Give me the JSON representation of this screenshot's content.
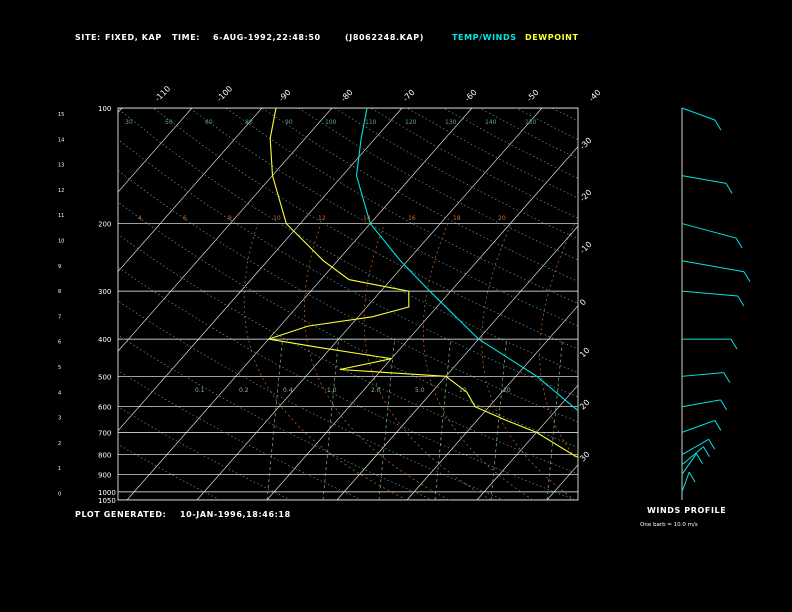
{
  "header": {
    "site_label": "SITE:",
    "site_value": "FIXED, KAP",
    "time_label": "TIME:",
    "time_value": "6-AUG-1992,22:48:50",
    "file": "(J8062248.KAP)",
    "legend_temp": "TEMP/WINDS",
    "legend_dew": "DEWPOINT"
  },
  "footer": {
    "generated_label": "PLOT GENERATED:",
    "generated_value": "10-JAN-1996,18:46:18",
    "winds_title": "WINDS PROFILE",
    "winds_note": "One barb = 10.0 m/s"
  },
  "colors": {
    "temp": "#00e5e5",
    "dew": "#ffff33",
    "grid": "#ffffff",
    "dry_adiabat": "#5f9ea0",
    "moist_adiabat": "#d2691e",
    "mixing_ratio": "#8fbc8f"
  },
  "chart_data": {
    "type": "line",
    "title": "",
    "xlabel": "",
    "ylabel": "",
    "pressure_levels": [
      400,
      300,
      200,
      100,
      900,
      800,
      700,
      600,
      500,
      1000,
      1050
    ],
    "pressure_labels": [
      "400",
      "300",
      "200",
      "100",
      "900",
      "800",
      "700",
      "600",
      "500",
      "1000",
      "1050"
    ],
    "height_km_labels": [
      "15",
      "14",
      "13",
      "12",
      "11",
      "10",
      "9",
      "8",
      "7",
      "6",
      "5",
      "4",
      "3",
      "2",
      "1",
      "0"
    ],
    "top_temp_labels": [
      "-110",
      "-100",
      "-90",
      "-80",
      "-70",
      "-60",
      "-50",
      "-40"
    ],
    "right_temp_labels": [
      "-30",
      "-20",
      "-10",
      "0",
      "10",
      "20",
      "30"
    ],
    "dry_adiabat_labels": [
      "30",
      "50",
      "60",
      "80",
      "90",
      "100",
      "110",
      "120",
      "130",
      "140",
      "150"
    ],
    "moist_adiabat_labels": [
      "4",
      "6",
      "8",
      "10",
      "12",
      "14",
      "16",
      "18",
      "20"
    ],
    "mixing_ratio_labels": [
      "0.1",
      "0.2",
      "0.4",
      "1.0",
      "2.0",
      "5.0",
      "10",
      "20"
    ],
    "series": [
      {
        "name": "TEMP/WINDS",
        "points": [
          [
            1000,
            31
          ],
          [
            950,
            28
          ],
          [
            900,
            25
          ],
          [
            850,
            21
          ],
          [
            800,
            17
          ],
          [
            700,
            10
          ],
          [
            600,
            2
          ],
          [
            500,
            -7
          ],
          [
            400,
            -20
          ],
          [
            300,
            -33
          ],
          [
            250,
            -41
          ],
          [
            200,
            -50
          ],
          [
            150,
            -58
          ],
          [
            120,
            -62
          ],
          [
            100,
            -65
          ]
        ]
      },
      {
        "name": "DEWPOINT",
        "points": [
          [
            1000,
            20
          ],
          [
            950,
            18
          ],
          [
            900,
            15
          ],
          [
            850,
            12
          ],
          [
            800,
            8
          ],
          [
            700,
            0
          ],
          [
            650,
            -6
          ],
          [
            600,
            -12
          ],
          [
            550,
            -15
          ],
          [
            500,
            -20
          ],
          [
            480,
            -36
          ],
          [
            450,
            -30
          ],
          [
            420,
            -42
          ],
          [
            400,
            -50
          ],
          [
            370,
            -46
          ],
          [
            350,
            -38
          ],
          [
            330,
            -34
          ],
          [
            300,
            -36
          ],
          [
            280,
            -46
          ],
          [
            250,
            -52
          ],
          [
            200,
            -62
          ],
          [
            150,
            -70
          ],
          [
            120,
            -75
          ],
          [
            100,
            -78
          ]
        ]
      }
    ],
    "winds": [
      {
        "p": 1000,
        "dir": 200,
        "spd": 5
      },
      {
        "p": 900,
        "dir": 215,
        "spd": 8
      },
      {
        "p": 850,
        "dir": 230,
        "spd": 10
      },
      {
        "p": 800,
        "dir": 240,
        "spd": 12
      },
      {
        "p": 700,
        "dir": 250,
        "spd": 15
      },
      {
        "p": 600,
        "dir": 260,
        "spd": 18
      },
      {
        "p": 500,
        "dir": 265,
        "spd": 20
      },
      {
        "p": 400,
        "dir": 270,
        "spd": 25
      },
      {
        "p": 300,
        "dir": 275,
        "spd": 30
      },
      {
        "p": 250,
        "dir": 280,
        "spd": 35
      },
      {
        "p": 200,
        "dir": 285,
        "spd": 30
      },
      {
        "p": 150,
        "dir": 280,
        "spd": 22
      },
      {
        "p": 100,
        "dir": 290,
        "spd": 15
      }
    ]
  }
}
